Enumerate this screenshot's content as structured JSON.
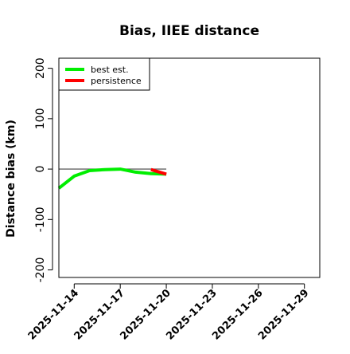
{
  "chart_data": {
    "type": "line",
    "title": "Bias, IIEE distance",
    "xlabel": "",
    "ylabel": "Distance bias (km)",
    "x_type": "date",
    "xlim": [
      "2025-11-13",
      "2025-11-30"
    ],
    "ylim": [
      -215,
      220
    ],
    "x_ticks": [
      "2025-11-14",
      "2025-11-17",
      "2025-11-20",
      "2025-11-23",
      "2025-11-26",
      "2025-11-29"
    ],
    "y_ticks": [
      -200,
      -100,
      0,
      100,
      200
    ],
    "grid": false,
    "legend_position": "top-left",
    "reference_line": {
      "y": 0,
      "x_range": [
        "2025-11-13",
        "2025-11-20"
      ],
      "color": "#666666"
    },
    "series": [
      {
        "name": "best est.",
        "color": "#00ee00",
        "x": [
          "2025-11-13",
          "2025-11-14",
          "2025-11-15",
          "2025-11-16",
          "2025-11-17",
          "2025-11-18",
          "2025-11-19",
          "2025-11-20"
        ],
        "y": [
          -38,
          -14,
          -3,
          -1,
          0,
          -6,
          -9,
          -10
        ]
      },
      {
        "name": "persistence",
        "color": "#ff0000",
        "x": [
          "2025-11-19",
          "2025-11-20"
        ],
        "y": [
          -1,
          -10
        ]
      }
    ]
  }
}
